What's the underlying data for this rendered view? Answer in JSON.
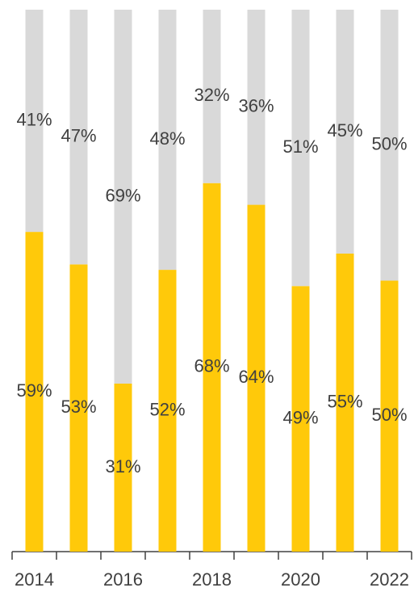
{
  "chart_data": {
    "type": "stacked_bar",
    "categories": [
      "2014",
      null,
      "2016",
      null,
      "2018",
      null,
      "2020",
      null,
      "2022"
    ],
    "ylim": [
      0,
      100
    ],
    "series": [
      {
        "color": "#FFC90A",
        "values": [
          59,
          53,
          31,
          52,
          68,
          64,
          49,
          55,
          50
        ],
        "value_labels": [
          "59%",
          "53%",
          "31%",
          "52%",
          "68%",
          "64%",
          "49%",
          "55%",
          "50%"
        ]
      },
      {
        "color": "#D9D9D9",
        "values": [
          41,
          47,
          69,
          48,
          32,
          36,
          51,
          45,
          50
        ],
        "value_labels": [
          "41%",
          "47%",
          "69%",
          "48%",
          "32%",
          "36%",
          "51%",
          "45%",
          "50%"
        ]
      }
    ]
  }
}
